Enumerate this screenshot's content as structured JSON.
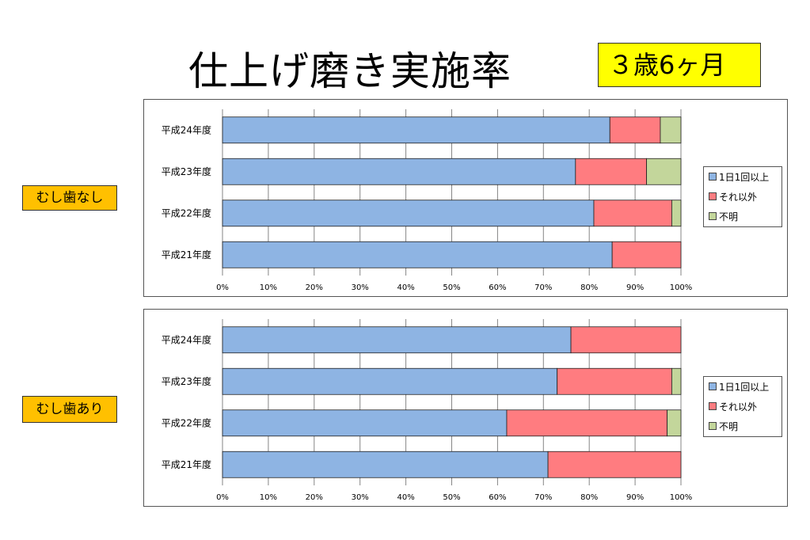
{
  "title": "仕上げ磨き実施率",
  "age_label": "３歳6ヶ月",
  "colors": {
    "series": [
      "#8eb4e3",
      "#ff7c80",
      "#c3d69b"
    ]
  },
  "chart_data": [
    {
      "type": "bar",
      "orientation": "horizontal",
      "stacked": "percent",
      "group_label": "むし歯なし",
      "categories": [
        "平成24年度",
        "平成23年度",
        "平成22年度",
        "平成21年度"
      ],
      "series": [
        {
          "name": "1日1回以上",
          "values": [
            84.5,
            77,
            81,
            85
          ]
        },
        {
          "name": "それ以外",
          "values": [
            11,
            15.5,
            17,
            15
          ]
        },
        {
          "name": "不明",
          "values": [
            4.5,
            7.5,
            2,
            0
          ]
        }
      ],
      "x_ticks": [
        "0%",
        "10%",
        "20%",
        "30%",
        "40%",
        "50%",
        "60%",
        "70%",
        "80%",
        "90%",
        "100%"
      ],
      "xlim": [
        0,
        100
      ],
      "grid": "vertical",
      "legend_position": "right"
    },
    {
      "type": "bar",
      "orientation": "horizontal",
      "stacked": "percent",
      "group_label": "むし歯あり",
      "categories": [
        "平成24年度",
        "平成23年度",
        "平成22年度",
        "平成21年度"
      ],
      "series": [
        {
          "name": "1日1回以上",
          "values": [
            76,
            73,
            62,
            71
          ]
        },
        {
          "name": "それ以外",
          "values": [
            24,
            25,
            35,
            29
          ]
        },
        {
          "name": "不明",
          "values": [
            0,
            2,
            3,
            0
          ]
        }
      ],
      "x_ticks": [
        "0%",
        "10%",
        "20%",
        "30%",
        "40%",
        "50%",
        "60%",
        "70%",
        "80%",
        "90%",
        "100%"
      ],
      "xlim": [
        0,
        100
      ],
      "grid": "vertical",
      "legend_position": "right"
    }
  ]
}
